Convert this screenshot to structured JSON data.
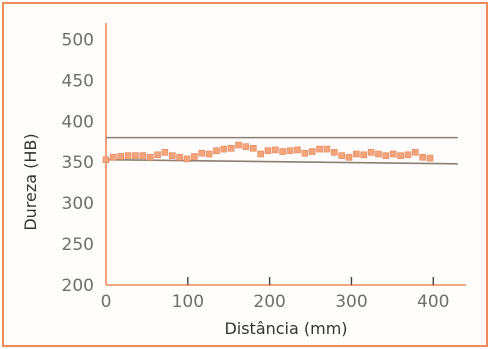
{
  "chart_data": {
    "type": "scatter",
    "title": "",
    "xlabel": "Distância (mm)",
    "ylabel": "Dureza (HB)",
    "xlim": [
      0,
      440
    ],
    "ylim": [
      200,
      520
    ],
    "x_ticks": [
      0,
      100,
      200,
      300,
      400
    ],
    "x_tick_labels": [
      "0",
      "100",
      "200",
      "300",
      "400"
    ],
    "y_ticks": [
      200,
      250,
      300,
      350,
      400,
      450,
      500
    ],
    "y_tick_labels": [
      "200",
      "250",
      "300",
      "350",
      "400",
      "450",
      "500"
    ],
    "grid": false,
    "legend": "none",
    "reference_lines": [
      {
        "y_start": 380,
        "y_end": 380,
        "x_start": 0,
        "x_end": 430
      },
      {
        "y_start": 353,
        "y_end": 348,
        "x_start": 0,
        "x_end": 430
      }
    ],
    "series": [
      {
        "marker": "square",
        "x": [
          0,
          9,
          18,
          27,
          36,
          45,
          54,
          63,
          72,
          81,
          90,
          99,
          108,
          117,
          126,
          135,
          144,
          153,
          162,
          171,
          180,
          189,
          198,
          207,
          216,
          225,
          234,
          243,
          252,
          261,
          270,
          279,
          288,
          297,
          306,
          315,
          324,
          333,
          342,
          351,
          360,
          369,
          378,
          387,
          396
        ],
        "y": [
          353,
          356,
          357,
          358,
          358,
          358,
          356,
          359,
          362,
          358,
          356,
          354,
          357,
          361,
          360,
          364,
          366,
          367,
          371,
          369,
          367,
          360,
          364,
          365,
          363,
          364,
          365,
          361,
          363,
          366,
          366,
          362,
          358,
          356,
          360,
          359,
          362,
          360,
          358,
          360,
          358,
          359,
          362,
          356,
          355
        ]
      }
    ],
    "colors": {
      "frame": "#f08a5a",
      "axis": "#f08a5a",
      "marker": "#f4a47a",
      "reference_line": "#8a7f73",
      "tick_label": "#6f6f6f",
      "axis_title": "#333333"
    }
  }
}
